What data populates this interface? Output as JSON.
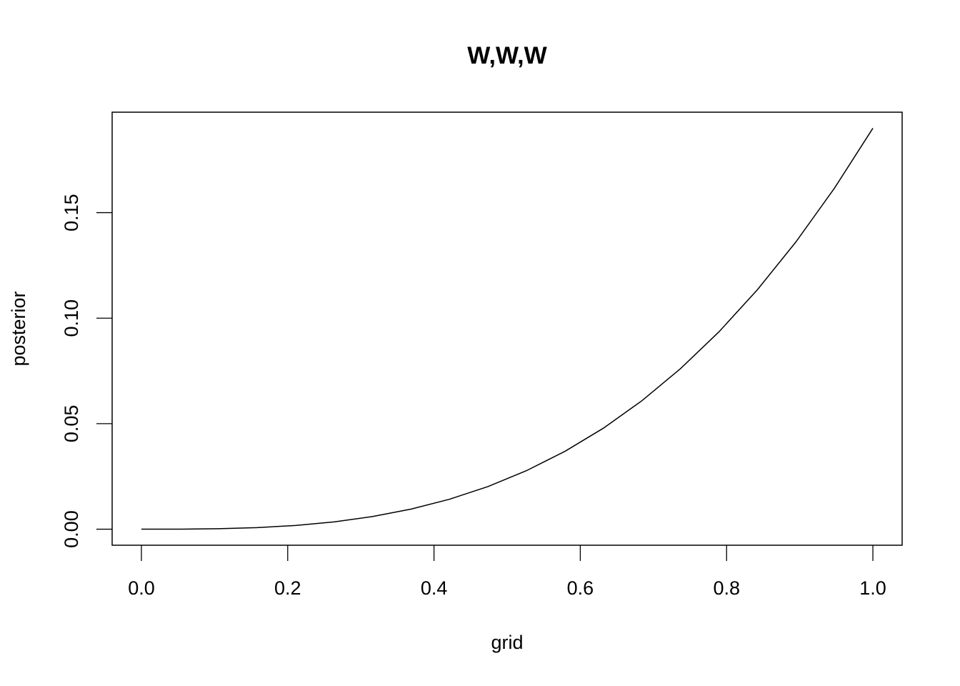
{
  "chart_data": {
    "type": "line",
    "title": "W,W,W",
    "x_label": "grid",
    "y_label": "posterior",
    "x": [
      0,
      0.0526,
      0.1053,
      0.1579,
      0.2105,
      0.2632,
      0.3158,
      0.3684,
      0.4211,
      0.4737,
      0.5263,
      0.5789,
      0.6316,
      0.6842,
      0.7368,
      0.7895,
      0.8421,
      0.8947,
      0.9474,
      1
    ],
    "series": [
      {
        "name": "posterior",
        "color": "#000000",
        "values": [
          0,
          2.77e-05,
          0.000222,
          0.000748,
          0.001773,
          0.003463,
          0.005983,
          0.009501,
          0.014183,
          0.020194,
          0.027701,
          0.03687,
          0.047867,
          0.060859,
          0.076011,
          0.09349,
          0.113463,
          0.136094,
          0.161551,
          0.19
        ]
      }
    ],
    "xlim": [
      -0.04,
      1.04
    ],
    "ylim": [
      -0.0076,
      0.1976
    ],
    "xticks": [
      {
        "value": 0,
        "label": "0.0"
      },
      {
        "value": 0.2,
        "label": "0.2"
      },
      {
        "value": 0.4,
        "label": "0.4"
      },
      {
        "value": 0.6,
        "label": "0.6"
      },
      {
        "value": 0.8,
        "label": "0.8"
      },
      {
        "value": 1,
        "label": "1.0"
      }
    ],
    "yticks": [
      {
        "value": 0,
        "label": "0.00"
      },
      {
        "value": 0.05,
        "label": "0.05"
      },
      {
        "value": 0.1,
        "label": "0.10"
      },
      {
        "value": 0.15,
        "label": "0.15"
      }
    ],
    "grid": false
  }
}
